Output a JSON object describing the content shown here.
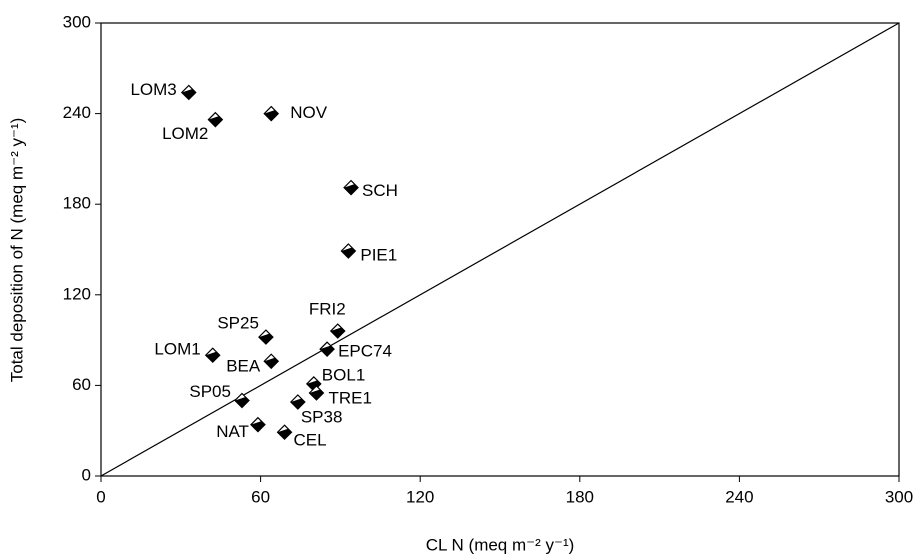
{
  "chart_data": {
    "type": "scatter",
    "xlabel": "CL N (meq m⁻² y⁻¹)",
    "ylabel": "Total deposition of N (meq m⁻² y⁻¹)",
    "point_labels": [
      "LOM3",
      "LOM2",
      "NOV",
      "SCH",
      "PIE1",
      "FRI2",
      "SP25",
      "LOM1",
      "BEA",
      "EPC74",
      "BOL1",
      "TRE1",
      "SP38",
      "SP05",
      "NAT",
      "CEL"
    ],
    "x": [
      33,
      43,
      64,
      94,
      93,
      89,
      62,
      42,
      64,
      85,
      80,
      81,
      74,
      53,
      59,
      69
    ],
    "values": [
      254,
      236,
      240,
      191,
      149,
      96,
      92,
      80,
      76,
      84,
      61,
      55,
      49,
      50,
      34,
      29
    ],
    "xlim": [
      0,
      300
    ],
    "ylim": [
      0,
      300
    ],
    "xticks": [
      0,
      60,
      120,
      180,
      240,
      300
    ],
    "yticks": [
      0,
      60,
      120,
      180,
      240,
      300
    ]
  }
}
